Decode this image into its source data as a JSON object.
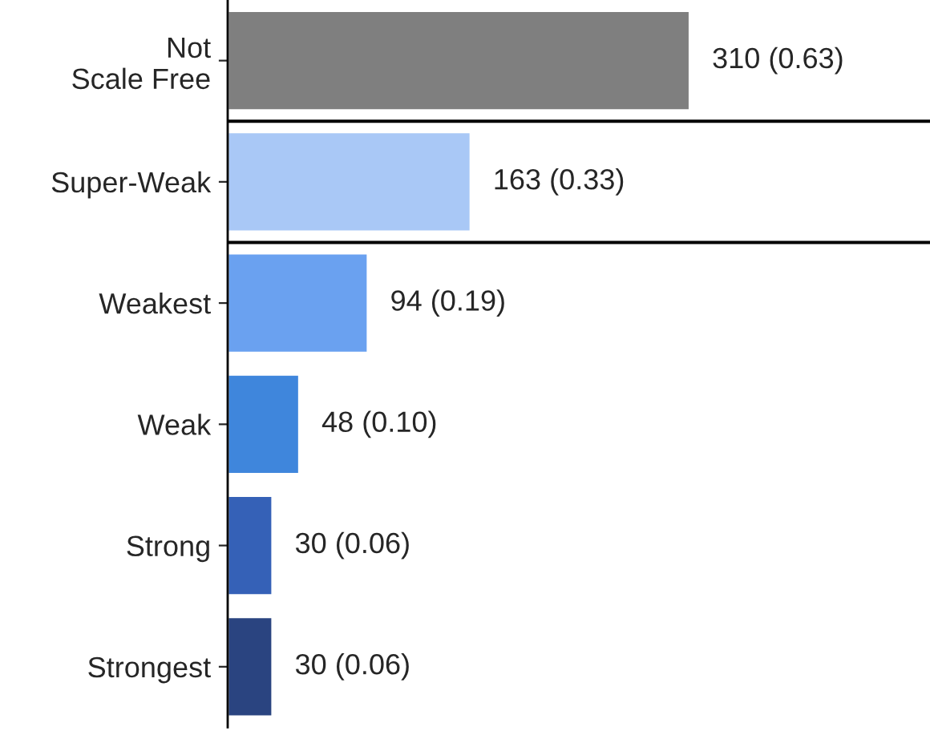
{
  "chart_data": {
    "type": "bar",
    "orientation": "horizontal",
    "categories": [
      "Not\nScale Free",
      "Super-Weak",
      "Weakest",
      "Weak",
      "Strong",
      "Strongest"
    ],
    "values": [
      310,
      163,
      94,
      48,
      30,
      30
    ],
    "colors": [
      "#7f7f7f",
      "#a9c8f6",
      "#6aa1f0",
      "#3f86dc",
      "#3561b7",
      "#2a4480"
    ],
    "value_labels": [
      "310 (0.63)",
      "163 (0.33)",
      "94 (0.19)",
      "48 (0.10)",
      "30 (0.06)",
      "30 (0.06)"
    ],
    "grid": false,
    "legend": false,
    "tick_labels": "y"
  }
}
